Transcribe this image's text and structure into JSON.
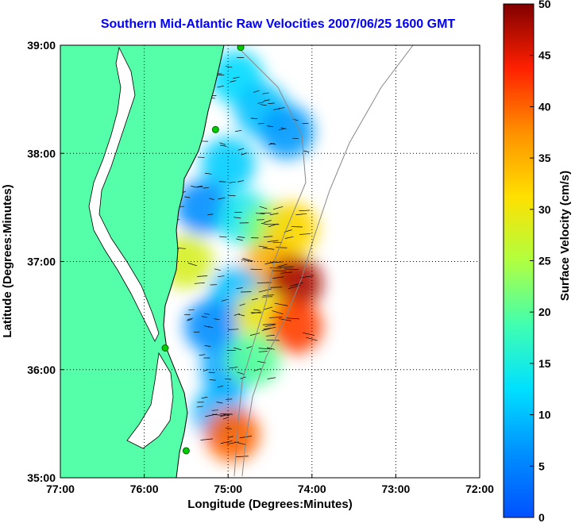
{
  "chart_data": {
    "type": "heatmap",
    "title": "Southern Mid-Atlantic Raw Velocities 2007/06/25 1600 GMT",
    "xlabel": "Longitude (Degrees:Minutes)",
    "ylabel": "Latitude (Degrees:Minutes)",
    "colorbar_label": "Surface Velocity (cm/s)",
    "x_ticks": [
      "77:00",
      "76:00",
      "75:00",
      "74:00",
      "73:00",
      "72:00"
    ],
    "y_ticks": [
      "39:00",
      "38:00",
      "37:00",
      "36:00",
      "35:00"
    ],
    "colorbar_ticks": [
      "50",
      "45",
      "40",
      "35",
      "30",
      "25",
      "20",
      "15",
      "10",
      "5",
      "0"
    ],
    "xlim": [
      -77,
      -72
    ],
    "ylim": [
      35,
      39
    ],
    "clim": [
      0,
      50
    ],
    "grid": true,
    "colormap": "jet",
    "land_color": "#55ffaa",
    "velocity_regions": [
      {
        "lon": -74.9,
        "lat": 38.7,
        "speed": 12
      },
      {
        "lon": -74.6,
        "lat": 38.4,
        "speed": 10
      },
      {
        "lon": -74.3,
        "lat": 38.2,
        "speed": 7
      },
      {
        "lon": -75.0,
        "lat": 37.9,
        "speed": 11
      },
      {
        "lon": -75.3,
        "lat": 37.5,
        "speed": 6
      },
      {
        "lon": -74.8,
        "lat": 37.4,
        "speed": 14
      },
      {
        "lon": -74.5,
        "lat": 37.3,
        "speed": 22
      },
      {
        "lon": -74.25,
        "lat": 37.3,
        "speed": 32
      },
      {
        "lon": -75.5,
        "lat": 37.0,
        "speed": 28
      },
      {
        "lon": -74.5,
        "lat": 36.95,
        "speed": 35
      },
      {
        "lon": -74.2,
        "lat": 36.8,
        "speed": 48
      },
      {
        "lon": -74.9,
        "lat": 36.7,
        "speed": 10
      },
      {
        "lon": -75.2,
        "lat": 36.4,
        "speed": 6
      },
      {
        "lon": -74.6,
        "lat": 36.5,
        "speed": 30
      },
      {
        "lon": -74.2,
        "lat": 36.4,
        "speed": 42
      },
      {
        "lon": -75.0,
        "lat": 36.0,
        "speed": 8
      },
      {
        "lon": -74.7,
        "lat": 36.1,
        "speed": 20
      },
      {
        "lon": -75.1,
        "lat": 35.6,
        "speed": 9
      },
      {
        "lon": -74.95,
        "lat": 35.4,
        "speed": 40
      }
    ],
    "stations": [
      {
        "lon": -74.85,
        "lat": 38.98
      },
      {
        "lon": -75.15,
        "lat": 38.22
      },
      {
        "lon": -75.75,
        "lat": 36.2
      },
      {
        "lon": -75.5,
        "lat": 35.25
      }
    ]
  }
}
